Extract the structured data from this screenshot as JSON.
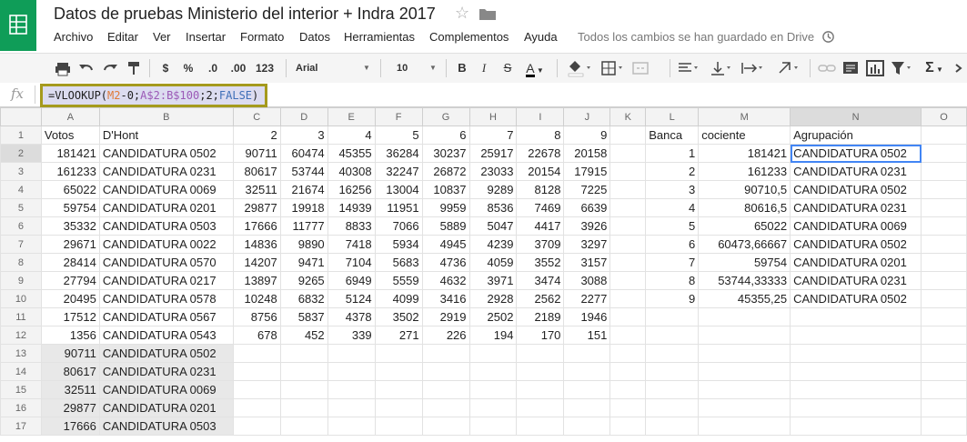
{
  "doc_title": "Datos de pruebas Ministerio del interior + Indra 2017",
  "menus": [
    "Archivo",
    "Editar",
    "Ver",
    "Insertar",
    "Formato",
    "Datos",
    "Herramientas",
    "Complementos",
    "Ayuda"
  ],
  "save_status": "Todos los cambios se han guardado en Drive",
  "toolbar": {
    "currency": "$",
    "percent": "%",
    "dec_decrease": ".0",
    "dec_increase": ".00",
    "more_formats": "123",
    "font": "Arial",
    "font_size": "10",
    "bold": "B",
    "italic": "I",
    "strike": "S",
    "text_color": "A"
  },
  "formula": {
    "fx": "fx",
    "parts": [
      "=VLOOKUP(",
      "M2",
      "-0;",
      "A$2:B$100",
      ";",
      "2",
      ";",
      "FALSE",
      ")"
    ]
  },
  "columns": [
    "A",
    "B",
    "C",
    "D",
    "E",
    "F",
    "G",
    "H",
    "I",
    "J",
    "K",
    "L",
    "M",
    "N",
    "O"
  ],
  "rows": [
    [
      "Votos",
      "D'Hont",
      "2",
      "3",
      "4",
      "5",
      "6",
      "7",
      "8",
      "9",
      "",
      "Banca",
      "cociente",
      "Agrupación",
      ""
    ],
    [
      "181421",
      "CANDIDATURA 0502",
      "90711",
      "60474",
      "45355",
      "36284",
      "30237",
      "25917",
      "22678",
      "20158",
      "",
      "1",
      "181421",
      "CANDIDATURA 0502",
      ""
    ],
    [
      "161233",
      "CANDIDATURA 0231",
      "80617",
      "53744",
      "40308",
      "32247",
      "26872",
      "23033",
      "20154",
      "17915",
      "",
      "2",
      "161233",
      "CANDIDATURA 0231",
      ""
    ],
    [
      "65022",
      "CANDIDATURA 0069",
      "32511",
      "21674",
      "16256",
      "13004",
      "10837",
      "9289",
      "8128",
      "7225",
      "",
      "3",
      "90710,5",
      "CANDIDATURA 0502",
      ""
    ],
    [
      "59754",
      "CANDIDATURA 0201",
      "29877",
      "19918",
      "14939",
      "11951",
      "9959",
      "8536",
      "7469",
      "6639",
      "",
      "4",
      "80616,5",
      "CANDIDATURA 0231",
      ""
    ],
    [
      "35332",
      "CANDIDATURA 0503",
      "17666",
      "11777",
      "8833",
      "7066",
      "5889",
      "5047",
      "4417",
      "3926",
      "",
      "5",
      "65022",
      "CANDIDATURA 0069",
      ""
    ],
    [
      "29671",
      "CANDIDATURA 0022",
      "14836",
      "9890",
      "7418",
      "5934",
      "4945",
      "4239",
      "3709",
      "3297",
      "",
      "6",
      "60473,66667",
      "CANDIDATURA 0502",
      ""
    ],
    [
      "28414",
      "CANDIDATURA 0570",
      "14207",
      "9471",
      "7104",
      "5683",
      "4736",
      "4059",
      "3552",
      "3157",
      "",
      "7",
      "59754",
      "CANDIDATURA 0201",
      ""
    ],
    [
      "27794",
      "CANDIDATURA 0217",
      "13897",
      "9265",
      "6949",
      "5559",
      "4632",
      "3971",
      "3474",
      "3088",
      "",
      "8",
      "53744,33333",
      "CANDIDATURA 0231",
      ""
    ],
    [
      "20495",
      "CANDIDATURA 0578",
      "10248",
      "6832",
      "5124",
      "4099",
      "3416",
      "2928",
      "2562",
      "2277",
      "",
      "9",
      "45355,25",
      "CANDIDATURA 0502",
      ""
    ],
    [
      "17512",
      "CANDIDATURA 0567",
      "8756",
      "5837",
      "4378",
      "3502",
      "2919",
      "2502",
      "2189",
      "1946",
      "",
      "",
      "",
      "",
      ""
    ],
    [
      "1356",
      "CANDIDATURA 0543",
      "678",
      "452",
      "339",
      "271",
      "226",
      "194",
      "170",
      "151",
      "",
      "",
      "",
      "",
      ""
    ],
    [
      "90711",
      "CANDIDATURA 0502",
      "",
      "",
      "",
      "",
      "",
      "",
      "",
      "",
      "",
      "",
      "",
      "",
      ""
    ],
    [
      "80617",
      "CANDIDATURA 0231",
      "",
      "",
      "",
      "",
      "",
      "",
      "",
      "",
      "",
      "",
      "",
      "",
      ""
    ],
    [
      "32511",
      "CANDIDATURA 0069",
      "",
      "",
      "",
      "",
      "",
      "",
      "",
      "",
      "",
      "",
      "",
      "",
      ""
    ],
    [
      "29877",
      "CANDIDATURA 0201",
      "",
      "",
      "",
      "",
      "",
      "",
      "",
      "",
      "",
      "",
      "",
      "",
      ""
    ],
    [
      "17666",
      "CANDIDATURA 0503",
      "",
      "",
      "",
      "",
      "",
      "",
      "",
      "",
      "",
      "",
      "",
      "",
      ""
    ]
  ]
}
